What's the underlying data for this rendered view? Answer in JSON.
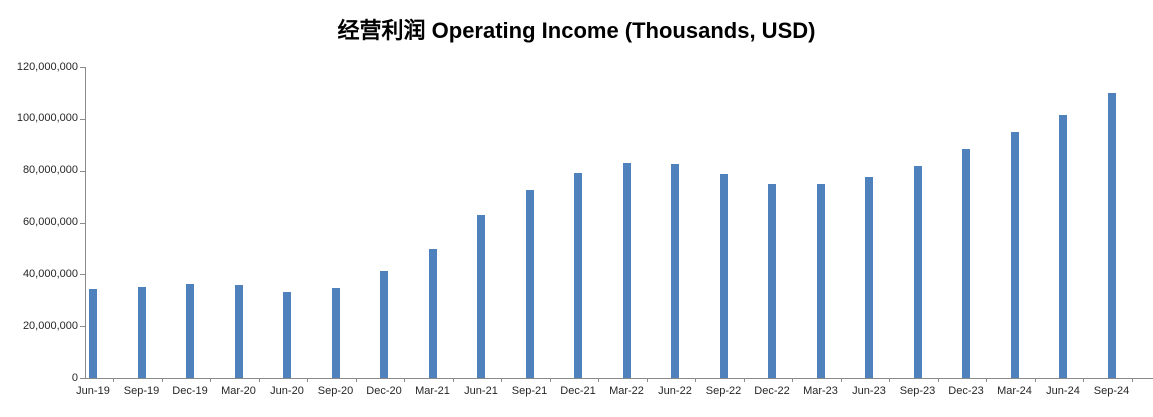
{
  "chart_data": {
    "type": "bar",
    "title": "经营利润 Operating Income (Thousands, USD)",
    "xlabel": "",
    "ylabel": "",
    "categories": [
      "Jun-19",
      "Sep-19",
      "Dec-19",
      "Mar-20",
      "Jun-20",
      "Sep-20",
      "Dec-20",
      "Mar-21",
      "Jun-21",
      "Sep-21",
      "Dec-21",
      "Mar-22",
      "Jun-22",
      "Sep-22",
      "Dec-22",
      "Mar-23",
      "Jun-23",
      "Sep-23",
      "Dec-23",
      "Mar-24",
      "Jun-24",
      "Sep-24"
    ],
    "values": [
      34500000,
      35000000,
      36200000,
      35800000,
      33000000,
      34800000,
      41400000,
      49900000,
      62900000,
      72500000,
      79100000,
      82800000,
      82600000,
      78800000,
      74900000,
      74700000,
      77600000,
      81800000,
      88300000,
      95000000,
      101500000,
      109900000
    ],
    "ylim": [
      0,
      120000000
    ],
    "ytick_step": 20000000,
    "ytick_labels": [
      "0",
      "20,000,000",
      "40,000,000",
      "60,000,000",
      "80,000,000",
      "100,000,000",
      "120,000,000"
    ],
    "grid": false,
    "legend_position": "none",
    "bar_color": "#4F81BD",
    "axis_color": "#8a8a8a",
    "tick_label_color": "#262626",
    "title_color": "#000000"
  }
}
